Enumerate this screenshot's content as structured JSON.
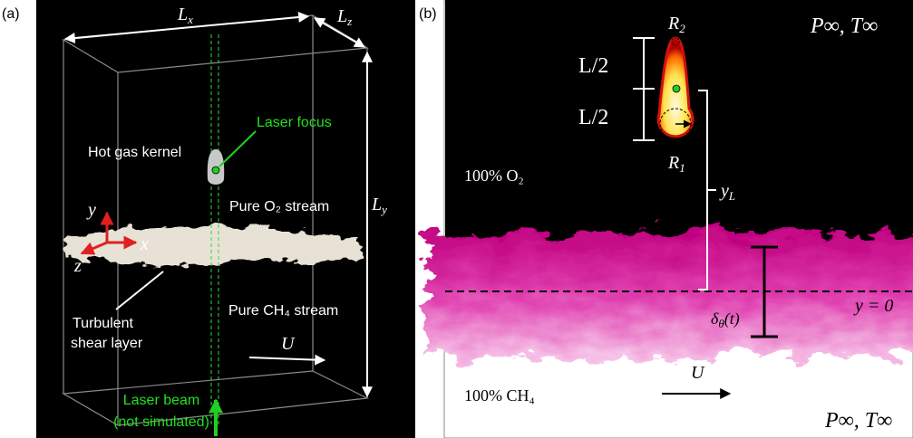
{
  "panel_a": {
    "label": "(a)",
    "dims": {
      "lx": {
        "base": "L",
        "sub": "x"
      },
      "lz": {
        "base": "L",
        "sub": "z"
      },
      "ly": {
        "base": "L",
        "sub": "y"
      }
    },
    "laser_focus": "Laser focus",
    "kernel": "Hot gas kernel",
    "o2_stream": "Pure O₂ stream",
    "axes": {
      "x": "x",
      "y": "y",
      "z": "z"
    },
    "shear_layer": [
      "Turbulent",
      "shear layer"
    ],
    "ch4_stream": "Pure CH₄ stream",
    "velocity": "U",
    "laser_beam": [
      "Laser beam",
      "(not simulated)"
    ]
  },
  "panel_b": {
    "label": "(b)",
    "r2": {
      "base": "R",
      "sub": "2"
    },
    "r1": {
      "base": "R",
      "sub": "1"
    },
    "ambient_top": "P∞, T∞",
    "half_length": [
      "L/2",
      "L/2"
    ],
    "o2": "100% O₂",
    "yl": {
      "base": "y",
      "sub": "L"
    },
    "thickness": {
      "base": "δ",
      "sub": "θ",
      "tail": "(t)"
    },
    "origin": "y = 0",
    "velocity": "U",
    "ch4": "100% CH₄",
    "ambient_bottom": "P∞, T∞"
  }
}
